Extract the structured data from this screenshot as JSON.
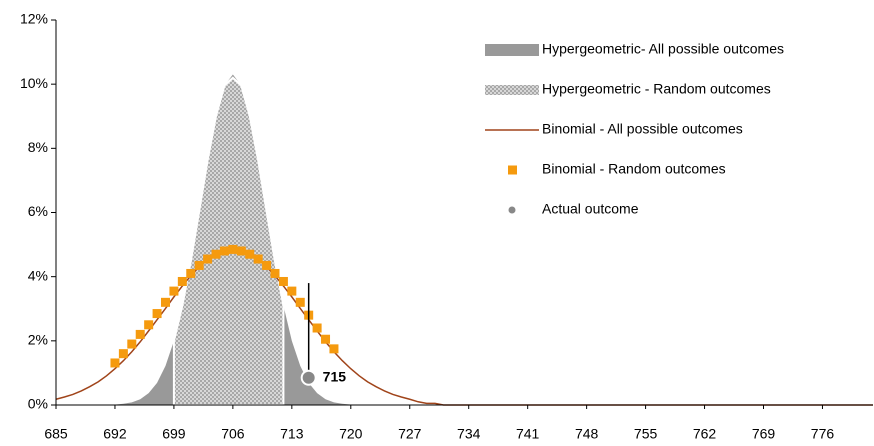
{
  "chart_data": {
    "type": "combo",
    "xlim": [
      685,
      782
    ],
    "ylim": [
      0,
      12
    ],
    "xticks": [
      685,
      692,
      699,
      706,
      713,
      720,
      727,
      734,
      741,
      748,
      755,
      762,
      769,
      776
    ],
    "yticks": [
      {
        "value": 0,
        "label": "0%"
      },
      {
        "value": 2,
        "label": "2%"
      },
      {
        "value": 4,
        "label": "4%"
      },
      {
        "value": 6,
        "label": "6%"
      },
      {
        "value": 8,
        "label": "8%"
      },
      {
        "value": 10,
        "label": "10%"
      },
      {
        "value": 12,
        "label": "12%"
      }
    ],
    "series": [
      {
        "name": "Hypergeometric- All possible outcomes",
        "type": "area",
        "color": "#999999",
        "x": [
          692,
          693,
          694,
          695,
          696,
          697,
          698,
          699,
          700,
          701,
          702,
          703,
          704,
          705,
          706,
          707,
          708,
          709,
          710,
          711,
          712,
          713,
          714,
          715,
          716,
          717,
          718,
          719,
          720
        ],
        "values": [
          0.01,
          0.04,
          0.08,
          0.18,
          0.37,
          0.69,
          1.22,
          2.0,
          3.1,
          4.47,
          6.04,
          7.63,
          9.01,
          9.96,
          10.3,
          9.96,
          9.01,
          7.63,
          6.04,
          4.47,
          3.1,
          2.0,
          1.22,
          0.69,
          0.37,
          0.18,
          0.08,
          0.04,
          0.01
        ]
      },
      {
        "name": "Hypergeometric - Random outcomes",
        "type": "pattern-area",
        "color": "#bbbbbb",
        "x": [
          699,
          700,
          701,
          702,
          703,
          704,
          705,
          706,
          707,
          708,
          709,
          710,
          711,
          712
        ],
        "values": [
          2.0,
          3.1,
          4.47,
          6.04,
          7.63,
          9.01,
          9.96,
          10.2,
          9.96,
          9.01,
          7.63,
          6.04,
          4.47,
          3.1
        ]
      },
      {
        "name": "Binomial - All possible outcomes",
        "type": "line",
        "color": "#a0441a",
        "x": [
          685,
          686,
          687,
          688,
          689,
          690,
          691,
          692,
          693,
          694,
          695,
          696,
          697,
          698,
          699,
          700,
          701,
          702,
          703,
          704,
          705,
          706,
          707,
          708,
          709,
          710,
          711,
          712,
          713,
          714,
          715,
          716,
          717,
          718,
          719,
          720,
          721,
          722,
          723,
          724,
          725,
          726,
          727,
          728,
          729,
          730,
          731,
          782
        ],
        "values": [
          0.18,
          0.25,
          0.33,
          0.44,
          0.57,
          0.72,
          0.91,
          1.13,
          1.38,
          1.66,
          1.97,
          2.31,
          2.66,
          3.01,
          3.37,
          3.71,
          4.03,
          4.31,
          4.54,
          4.71,
          4.81,
          4.85,
          4.81,
          4.71,
          4.54,
          4.31,
          4.03,
          3.71,
          3.37,
          3.01,
          2.66,
          2.31,
          1.97,
          1.66,
          1.38,
          1.13,
          0.91,
          0.72,
          0.57,
          0.44,
          0.33,
          0.25,
          0.18,
          0.1,
          0.05,
          0.05,
          0,
          0
        ]
      },
      {
        "name": "Binomial - Random outcomes",
        "type": "scatter",
        "color": "#f59a0e",
        "x": [
          692,
          693,
          694,
          695,
          696,
          697,
          698,
          699,
          700,
          701,
          702,
          703,
          704,
          705,
          706,
          707,
          708,
          709,
          710,
          711,
          712,
          713,
          714,
          715,
          716,
          717,
          718
        ],
        "values": [
          1.31,
          1.6,
          1.9,
          2.2,
          2.5,
          2.85,
          3.2,
          3.55,
          3.85,
          4.1,
          4.35,
          4.55,
          4.7,
          4.8,
          4.85,
          4.8,
          4.7,
          4.55,
          4.35,
          4.1,
          3.85,
          3.55,
          3.2,
          2.8,
          2.4,
          2.05,
          1.75
        ]
      },
      {
        "name": "Actual outcome",
        "type": "point",
        "color": "#888888",
        "x": [
          715
        ],
        "values": [
          0.85
        ],
        "whisker_top": 3.8
      }
    ]
  }
}
